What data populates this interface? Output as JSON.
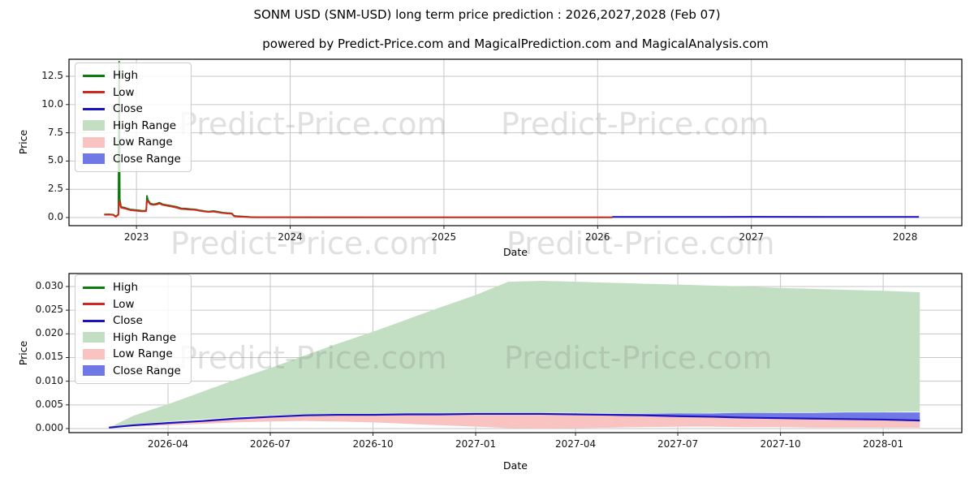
{
  "figure": {
    "title": "SONM USD (SNM-USD) long term price prediction : 2026,2027,2028 (Feb 07)",
    "subtitle": "powered by Predict-Price.com and MagicalPrediction.com and MagicalAnalysis.com"
  },
  "watermark": {
    "text": "Predict-Price.com"
  },
  "legend": {
    "items": [
      {
        "label": "High",
        "type": "line",
        "color": "#0e7b0e"
      },
      {
        "label": "Low",
        "type": "line",
        "color": "#d02820"
      },
      {
        "label": "Close",
        "type": "line",
        "color": "#1a12bf"
      },
      {
        "label": "High Range",
        "type": "patch",
        "color": "#c3dfc3"
      },
      {
        "label": "Low Range",
        "type": "patch",
        "color": "#f8c3c0"
      },
      {
        "label": "Close Range",
        "type": "patch",
        "color": "#7078e6"
      }
    ]
  },
  "colors": {
    "grid": "#c6c6c6",
    "spine": "#000000",
    "high_line": "#0e7b0e",
    "low_line": "#d02820",
    "close_line": "#1a12bf",
    "high_range_fill": "#c3dfc3",
    "low_range_fill": "#f8c3c0",
    "close_range_fill": "#7078e6"
  },
  "chart_data": [
    {
      "name": "history-chart",
      "type": "line",
      "xlabel": "Date",
      "ylabel": "Price",
      "grid": true,
      "legend_position": "upper left",
      "x_unit": "decimal_year",
      "xlim": [
        2022.561,
        2028.369
      ],
      "ylim": [
        -0.718,
        14.01
      ],
      "x_ticks": [
        {
          "x": 2023,
          "label": "2023"
        },
        {
          "x": 2024,
          "label": "2024"
        },
        {
          "x": 2025,
          "label": "2025"
        },
        {
          "x": 2026,
          "label": "2026"
        },
        {
          "x": 2027,
          "label": "2027"
        },
        {
          "x": 2028,
          "label": "2028"
        }
      ],
      "y_ticks": [
        {
          "y": 0.0,
          "label": "0.0"
        },
        {
          "y": 2.5,
          "label": "2.5"
        },
        {
          "y": 5.0,
          "label": "5.0"
        },
        {
          "y": 7.5,
          "label": "7.5"
        },
        {
          "y": 10.0,
          "label": "10.0"
        },
        {
          "y": 12.5,
          "label": "12.5"
        }
      ],
      "series": [
        {
          "name": "High",
          "kind": "line",
          "color": "#0e7b0e",
          "width": 1.8,
          "points": [
            [
              2022.79,
              0.28
            ],
            [
              2022.82,
              0.29
            ],
            [
              2022.85,
              0.26
            ],
            [
              2022.865,
              0.1
            ],
            [
              2022.882,
              0.28
            ],
            [
              2022.887,
              13.8
            ],
            [
              2022.892,
              1.6
            ],
            [
              2022.9,
              0.95
            ],
            [
              2022.93,
              0.85
            ],
            [
              2022.96,
              0.72
            ],
            [
              2023.0,
              0.66
            ],
            [
              2023.04,
              0.6
            ],
            [
              2023.063,
              0.62
            ],
            [
              2023.068,
              1.92
            ],
            [
              2023.075,
              1.55
            ],
            [
              2023.09,
              1.25
            ],
            [
              2023.11,
              1.18
            ],
            [
              2023.13,
              1.22
            ],
            [
              2023.15,
              1.32
            ],
            [
              2023.17,
              1.18
            ],
            [
              2023.2,
              1.1
            ],
            [
              2023.23,
              1.03
            ],
            [
              2023.26,
              0.95
            ],
            [
              2023.29,
              0.82
            ],
            [
              2023.32,
              0.8
            ],
            [
              2023.35,
              0.75
            ],
            [
              2023.38,
              0.73
            ],
            [
              2023.41,
              0.65
            ],
            [
              2023.44,
              0.58
            ],
            [
              2023.47,
              0.53
            ],
            [
              2023.5,
              0.58
            ],
            [
              2023.53,
              0.52
            ],
            [
              2023.56,
              0.44
            ],
            [
              2023.59,
              0.4
            ],
            [
              2023.62,
              0.38
            ],
            [
              2023.635,
              0.16
            ],
            [
              2023.66,
              0.12
            ],
            [
              2023.7,
              0.09
            ],
            [
              2023.74,
              0.05
            ],
            [
              2023.78,
              0.03
            ],
            [
              2024.0,
              0.025
            ],
            [
              2024.5,
              0.02
            ],
            [
              2025.0,
              0.02
            ],
            [
              2025.5,
              0.02
            ],
            [
              2026.095,
              0.02
            ]
          ]
        },
        {
          "name": "Low",
          "kind": "line",
          "color": "#d02820",
          "width": 2,
          "points": [
            [
              2022.79,
              0.25
            ],
            [
              2022.82,
              0.26
            ],
            [
              2022.85,
              0.23
            ],
            [
              2022.865,
              0.07
            ],
            [
              2022.882,
              0.24
            ],
            [
              2022.887,
              1.45
            ],
            [
              2022.892,
              1.3
            ],
            [
              2022.9,
              0.88
            ],
            [
              2022.93,
              0.78
            ],
            [
              2022.96,
              0.66
            ],
            [
              2023.0,
              0.6
            ],
            [
              2023.04,
              0.55
            ],
            [
              2023.063,
              0.57
            ],
            [
              2023.068,
              1.48
            ],
            [
              2023.075,
              1.42
            ],
            [
              2023.09,
              1.18
            ],
            [
              2023.11,
              1.12
            ],
            [
              2023.13,
              1.16
            ],
            [
              2023.15,
              1.24
            ],
            [
              2023.17,
              1.12
            ],
            [
              2023.2,
              1.04
            ],
            [
              2023.23,
              0.97
            ],
            [
              2023.26,
              0.88
            ],
            [
              2023.29,
              0.76
            ],
            [
              2023.32,
              0.74
            ],
            [
              2023.35,
              0.7
            ],
            [
              2023.38,
              0.68
            ],
            [
              2023.41,
              0.6
            ],
            [
              2023.44,
              0.54
            ],
            [
              2023.47,
              0.49
            ],
            [
              2023.5,
              0.53
            ],
            [
              2023.53,
              0.47
            ],
            [
              2023.56,
              0.4
            ],
            [
              2023.59,
              0.36
            ],
            [
              2023.62,
              0.34
            ],
            [
              2023.635,
              0.12
            ],
            [
              2023.66,
              0.08
            ],
            [
              2023.7,
              0.06
            ],
            [
              2023.74,
              0.03
            ],
            [
              2023.78,
              0.02
            ],
            [
              2024.0,
              0.02
            ],
            [
              2024.5,
              0.015
            ],
            [
              2025.0,
              0.015
            ],
            [
              2025.5,
              0.015
            ],
            [
              2026.095,
              0.015
            ]
          ]
        },
        {
          "name": "Close",
          "kind": "line",
          "color": "#1a12bf",
          "width": 2,
          "points": [
            [
              2026.095,
              0.05
            ],
            [
              2027.0,
              0.06
            ],
            [
              2028.09,
              0.05
            ]
          ]
        }
      ]
    },
    {
      "name": "prediction-chart",
      "type": "area",
      "xlabel": "Date",
      "ylabel": "Price",
      "grid": true,
      "legend_position": "upper left",
      "x_unit": "decimal_year",
      "xlim": [
        2026.002,
        2028.193
      ],
      "ylim": [
        -0.000857,
        0.03274
      ],
      "x_ticks": [
        {
          "x": 2026.245,
          "label": "2026-04"
        },
        {
          "x": 2026.496,
          "label": "2026-07"
        },
        {
          "x": 2026.748,
          "label": "2026-10"
        },
        {
          "x": 2027.0,
          "label": "2027-01"
        },
        {
          "x": 2027.245,
          "label": "2027-04"
        },
        {
          "x": 2027.496,
          "label": "2027-07"
        },
        {
          "x": 2027.748,
          "label": "2027-10"
        },
        {
          "x": 2028.0,
          "label": "2028-01"
        }
      ],
      "y_ticks": [
        {
          "y": 0.0,
          "label": "0.000"
        },
        {
          "y": 0.005,
          "label": "0.005"
        },
        {
          "y": 0.01,
          "label": "0.010"
        },
        {
          "y": 0.015,
          "label": "0.015"
        },
        {
          "y": 0.02,
          "label": "0.020"
        },
        {
          "y": 0.025,
          "label": "0.025"
        },
        {
          "y": 0.03,
          "label": "0.030"
        }
      ],
      "x": [
        2026.1,
        2026.16,
        2026.25,
        2026.33,
        2026.41,
        2026.5,
        2026.58,
        2026.66,
        2026.75,
        2026.83,
        2026.91,
        2027.0,
        2027.08,
        2027.16,
        2027.25,
        2027.33,
        2027.41,
        2027.5,
        2027.58,
        2027.66,
        2027.75,
        2027.83,
        2027.91,
        2028.0,
        2028.09
      ],
      "series": [
        {
          "name": "High Range",
          "kind": "band",
          "color": "#c3dfc3",
          "top": [
            0.0002,
            0.0027,
            0.0053,
            0.0078,
            0.0103,
            0.0129,
            0.0154,
            0.0179,
            0.0205,
            0.023,
            0.0255,
            0.0282,
            0.031,
            0.0312,
            0.031,
            0.0308,
            0.0306,
            0.0304,
            0.0302,
            0.03,
            0.0297,
            0.0295,
            0.0293,
            0.0291,
            0.0288
          ],
          "bottom": [
            0.0002,
            0.0009,
            0.0015,
            0.002,
            0.0024,
            0.0028,
            0.003,
            0.0031,
            0.0031,
            0.0032,
            0.0032,
            0.0033,
            0.0033,
            0.0033,
            0.0033,
            0.0032,
            0.0032,
            0.0032,
            0.0033,
            0.0033,
            0.0034,
            0.0034,
            0.0035,
            0.0035,
            0.0036
          ]
        },
        {
          "name": "Low Range",
          "kind": "band",
          "color": "#f8c3c0",
          "top": [
            0.0002,
            0.0007,
            0.0012,
            0.0016,
            0.0021,
            0.0025,
            0.0028,
            0.0029,
            0.0029,
            0.003,
            0.003,
            0.0031,
            0.0031,
            0.0031,
            0.003,
            0.0029,
            0.0028,
            0.0026,
            0.0025,
            0.0023,
            0.0022,
            0.0021,
            0.002,
            0.0019,
            0.0017
          ],
          "bottom": [
            0.0002,
            0.0004,
            0.0007,
            0.001,
            0.0013,
            0.0015,
            0.0016,
            0.0015,
            0.0013,
            0.001,
            0.0007,
            0.0004,
            0.0001,
            0.0,
            0.0001,
            0.0002,
            0.0003,
            0.0004,
            0.0004,
            0.0003,
            0.0003,
            0.0002,
            0.0002,
            0.0002,
            0.0002
          ]
        },
        {
          "name": "Close Range",
          "kind": "band",
          "color": "#7078e6",
          "top": [
            0.0002,
            0.0008,
            0.0013,
            0.0017,
            0.0022,
            0.0026,
            0.0029,
            0.003,
            0.003,
            0.0031,
            0.0031,
            0.0032,
            0.0032,
            0.0032,
            0.0031,
            0.0031,
            0.0031,
            0.0032,
            0.0032,
            0.0033,
            0.0033,
            0.0033,
            0.0034,
            0.0034,
            0.0034
          ],
          "bottom": [
            0.0002,
            0.0006,
            0.0011,
            0.0015,
            0.002,
            0.0024,
            0.0027,
            0.0028,
            0.0028,
            0.0029,
            0.0029,
            0.003,
            0.003,
            0.003,
            0.0029,
            0.0028,
            0.0027,
            0.0025,
            0.0024,
            0.0022,
            0.0021,
            0.002,
            0.0019,
            0.0018,
            0.0015
          ]
        },
        {
          "name": "Close",
          "kind": "line",
          "color": "#1a12bf",
          "width": 2.2,
          "values": [
            0.0002,
            0.0007,
            0.0012,
            0.0016,
            0.0021,
            0.0025,
            0.0028,
            0.0029,
            0.0029,
            0.003,
            0.003,
            0.0031,
            0.0031,
            0.0031,
            0.003,
            0.0029,
            0.0028,
            0.0026,
            0.0025,
            0.0023,
            0.0022,
            0.0021,
            0.002,
            0.0019,
            0.0017
          ]
        }
      ]
    }
  ]
}
